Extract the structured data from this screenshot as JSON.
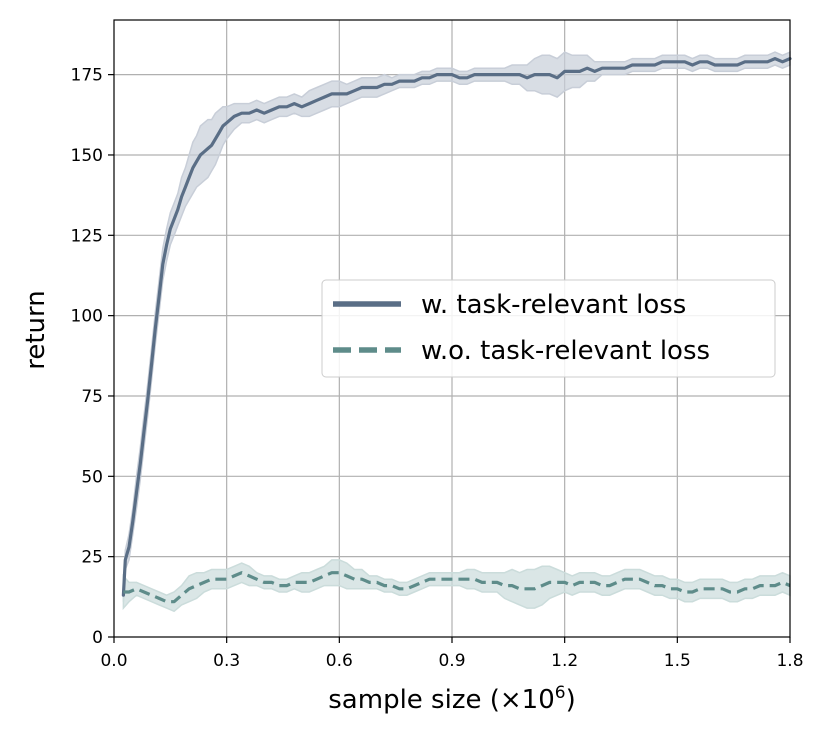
{
  "chart_data": {
    "type": "line",
    "xlabel": "sample size (×10",
    "xlabel_sup": "6",
    "xlabel_close": ")",
    "ylabel": "return",
    "xlim": [
      0.0,
      1.8
    ],
    "ylim": [
      0,
      192
    ],
    "xticks": [
      "0.0",
      "0.3",
      "0.6",
      "0.9",
      "1.2",
      "1.5",
      "1.8"
    ],
    "yticks": [
      "0",
      "25",
      "50",
      "75",
      "100",
      "125",
      "150",
      "175"
    ],
    "grid": true,
    "legend_position": "center-right",
    "series": [
      {
        "name": "w. task-relevant loss",
        "color": "#5a6e86",
        "fill": "#c8ced8",
        "style": "solid",
        "x": [
          0.025,
          0.03,
          0.04,
          0.05,
          0.06,
          0.07,
          0.08,
          0.09,
          0.1,
          0.11,
          0.12,
          0.13,
          0.14,
          0.15,
          0.16,
          0.17,
          0.18,
          0.19,
          0.2,
          0.21,
          0.22,
          0.23,
          0.24,
          0.25,
          0.26,
          0.27,
          0.28,
          0.29,
          0.3,
          0.32,
          0.34,
          0.36,
          0.38,
          0.4,
          0.42,
          0.44,
          0.46,
          0.48,
          0.5,
          0.52,
          0.54,
          0.56,
          0.58,
          0.6,
          0.62,
          0.64,
          0.66,
          0.68,
          0.7,
          0.72,
          0.74,
          0.76,
          0.78,
          0.8,
          0.82,
          0.84,
          0.86,
          0.88,
          0.9,
          0.92,
          0.94,
          0.96,
          0.98,
          1.0,
          1.02,
          1.04,
          1.06,
          1.08,
          1.1,
          1.12,
          1.14,
          1.16,
          1.18,
          1.2,
          1.22,
          1.24,
          1.26,
          1.28,
          1.3,
          1.32,
          1.34,
          1.36,
          1.38,
          1.4,
          1.42,
          1.44,
          1.46,
          1.48,
          1.5,
          1.52,
          1.54,
          1.56,
          1.58,
          1.6,
          1.62,
          1.64,
          1.66,
          1.68,
          1.7,
          1.72,
          1.74,
          1.76,
          1.78,
          1.8
        ],
        "y": [
          13,
          24,
          28,
          36,
          45,
          54,
          64,
          74,
          85,
          96,
          106,
          116,
          122,
          127,
          130,
          133,
          137,
          140,
          143,
          146,
          148,
          150,
          151,
          152,
          153,
          155,
          157,
          159,
          160,
          162,
          163,
          163,
          164,
          163,
          164,
          165,
          165,
          166,
          165,
          166,
          167,
          168,
          169,
          169,
          169,
          170,
          171,
          171,
          171,
          172,
          172,
          173,
          173,
          173,
          174,
          174,
          175,
          175,
          175,
          174,
          174,
          175,
          175,
          175,
          175,
          175,
          175,
          175,
          174,
          175,
          175,
          175,
          174,
          176,
          176,
          176,
          177,
          176,
          177,
          177,
          177,
          177,
          178,
          178,
          178,
          178,
          179,
          179,
          179,
          179,
          178,
          179,
          179,
          178,
          178,
          178,
          178,
          179,
          179,
          179,
          179,
          180,
          179,
          180
        ],
        "band": [
          2,
          3,
          4,
          4,
          5,
          5,
          5,
          5,
          5,
          5,
          5,
          5,
          5,
          5,
          5,
          5,
          6,
          6,
          7,
          8,
          8,
          9,
          9,
          9,
          8,
          8,
          7,
          6,
          5,
          4,
          3,
          3,
          3,
          3,
          3,
          3,
          3,
          3,
          3,
          4,
          4,
          4,
          4,
          4,
          3,
          3,
          3,
          3,
          3,
          3,
          2,
          2,
          2,
          2,
          2,
          2,
          2,
          2,
          2,
          2,
          2,
          2,
          2,
          2,
          2,
          2,
          3,
          3,
          4,
          5,
          6,
          6,
          6,
          6,
          5,
          5,
          4,
          3,
          2,
          2,
          2,
          2,
          2,
          2,
          2,
          2,
          2,
          2,
          2,
          2,
          2,
          2,
          2,
          2,
          2,
          2,
          2,
          2,
          2,
          2,
          2,
          2,
          2,
          2
        ]
      },
      {
        "name": "w.o. task-relevant loss",
        "color": "#5e8c8a",
        "fill": "#cbdcdb",
        "style": "dashed",
        "x": [
          0.025,
          0.04,
          0.06,
          0.08,
          0.1,
          0.12,
          0.14,
          0.16,
          0.18,
          0.2,
          0.22,
          0.24,
          0.26,
          0.28,
          0.3,
          0.32,
          0.34,
          0.36,
          0.38,
          0.4,
          0.42,
          0.44,
          0.46,
          0.48,
          0.5,
          0.52,
          0.54,
          0.56,
          0.58,
          0.6,
          0.62,
          0.64,
          0.66,
          0.68,
          0.7,
          0.72,
          0.74,
          0.76,
          0.78,
          0.8,
          0.82,
          0.84,
          0.86,
          0.88,
          0.9,
          0.92,
          0.94,
          0.96,
          0.98,
          1.0,
          1.02,
          1.04,
          1.06,
          1.08,
          1.1,
          1.12,
          1.14,
          1.16,
          1.18,
          1.2,
          1.22,
          1.24,
          1.26,
          1.28,
          1.3,
          1.32,
          1.34,
          1.36,
          1.38,
          1.4,
          1.42,
          1.44,
          1.46,
          1.48,
          1.5,
          1.52,
          1.54,
          1.56,
          1.58,
          1.6,
          1.62,
          1.64,
          1.66,
          1.68,
          1.7,
          1.72,
          1.74,
          1.76,
          1.78,
          1.8
        ],
        "y": [
          14,
          14,
          15,
          14,
          13,
          12,
          11,
          11,
          13,
          15,
          16,
          17,
          18,
          18,
          18,
          19,
          20,
          19,
          18,
          17,
          17,
          16,
          16,
          17,
          17,
          17,
          18,
          19,
          20,
          20,
          19,
          18,
          18,
          17,
          17,
          16,
          16,
          15,
          15,
          16,
          17,
          18,
          18,
          18,
          18,
          18,
          18,
          18,
          17,
          17,
          17,
          16,
          16,
          15,
          15,
          15,
          16,
          17,
          17,
          17,
          16,
          17,
          17,
          17,
          16,
          16,
          17,
          18,
          18,
          18,
          17,
          16,
          16,
          15,
          15,
          14,
          14,
          15,
          15,
          15,
          15,
          14,
          14,
          15,
          15,
          16,
          16,
          16,
          17,
          16
        ],
        "band": [
          5,
          3,
          2,
          2,
          2,
          2,
          2,
          3,
          3,
          4,
          4,
          3,
          3,
          3,
          3,
          3,
          3,
          3,
          2,
          2,
          2,
          2,
          2,
          2,
          3,
          3,
          3,
          3,
          4,
          4,
          4,
          3,
          3,
          2,
          2,
          2,
          2,
          2,
          2,
          2,
          2,
          2,
          2,
          2,
          2,
          2,
          3,
          3,
          3,
          3,
          3,
          4,
          5,
          5,
          6,
          6,
          6,
          5,
          4,
          3,
          3,
          3,
          3,
          3,
          3,
          3,
          3,
          3,
          3,
          3,
          3,
          3,
          3,
          3,
          3,
          3,
          3,
          3,
          3,
          3,
          3,
          3,
          3,
          3,
          3,
          3,
          3,
          3,
          3,
          3
        ]
      }
    ]
  }
}
